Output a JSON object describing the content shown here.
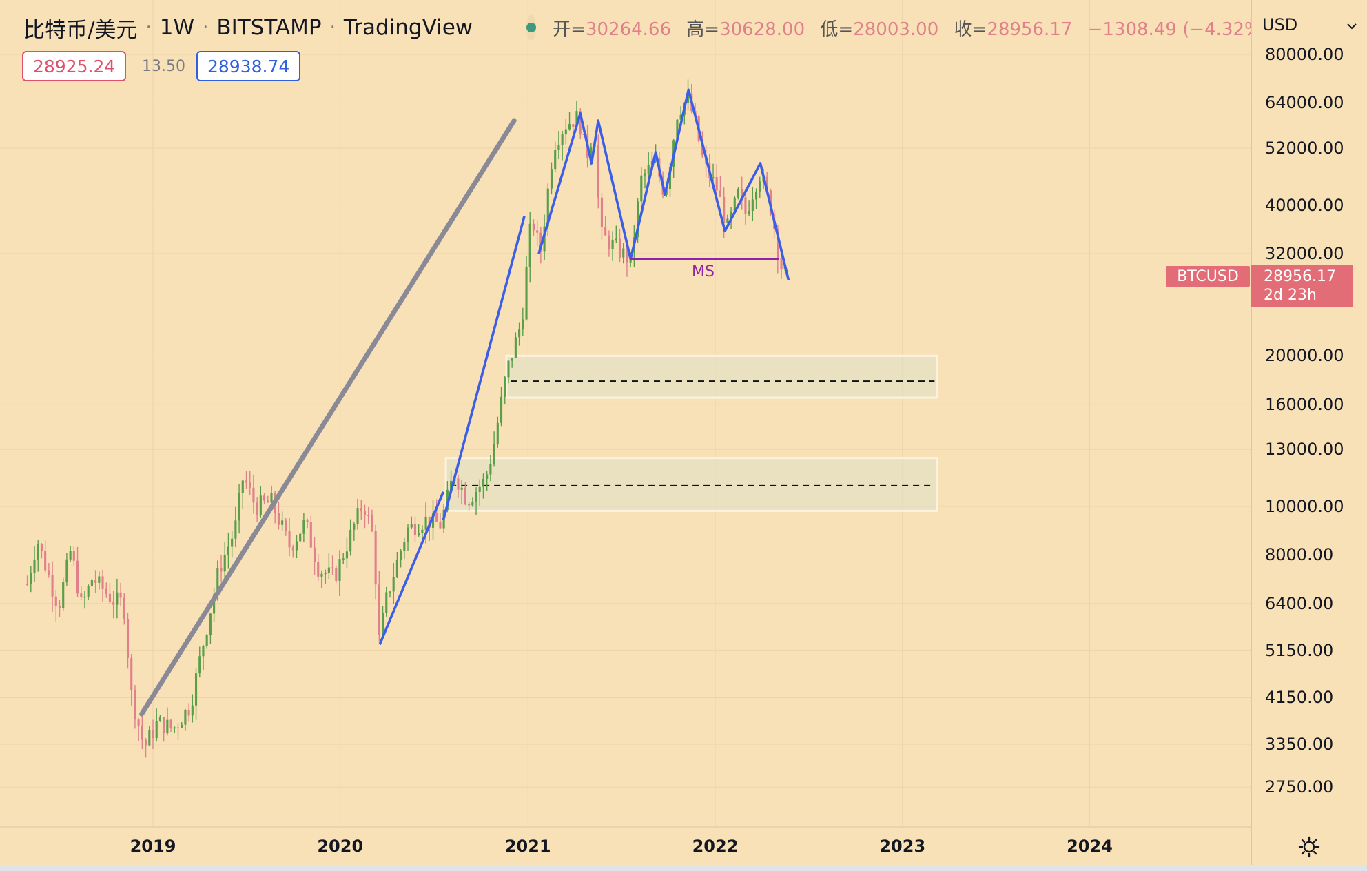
{
  "header": {
    "symbol": "比特币/美元",
    "interval": "1W",
    "exchange": "BITSTAMP",
    "provider": "TradingView",
    "sep": "·",
    "ohlc": {
      "open_label": "开=",
      "open": "30264.66",
      "high_label": "高=",
      "high": "30628.00",
      "low_label": "低=",
      "low": "28003.00",
      "close_label": "收=",
      "close": "28956.17",
      "change": "−1308.49 (−4.32%)"
    }
  },
  "trade": {
    "sell": "28925.24",
    "spread": "13.50",
    "buy": "28938.74"
  },
  "axis": {
    "currency": "USD",
    "y_ticks": [
      "80000.00",
      "64000.00",
      "52000.00",
      "40000.00",
      "32000.00",
      "20000.00",
      "16000.00",
      "13000.00",
      "10000.00",
      "8000.00",
      "6400.00",
      "5150.00",
      "4150.00",
      "3350.00",
      "2750.00"
    ],
    "x_ticks": [
      "2019",
      "2020",
      "2021",
      "2022",
      "2023",
      "2024"
    ]
  },
  "price_label": {
    "symbol": "BTCUSD",
    "value": "28956.17",
    "countdown": "2d 23h"
  },
  "annotations": {
    "ms": "MS"
  },
  "icons": [
    "flag-icon",
    "live-status-icon",
    "chevron-down-icon",
    "settings-icon"
  ],
  "colors": {
    "background": "#f9e1b7",
    "candle_up": "#5a9e4a",
    "candle_down": "#e0808a",
    "trend_line_blue": "#3a5ee8",
    "trend_line_gray": "#8a8a96",
    "ms_line": "#8e24aa",
    "price_tag": "#e26d77"
  },
  "chart_data": {
    "type": "candlestick",
    "symbol": "BTCUSD",
    "interval": "1W",
    "scale": "log",
    "ylim": [
      2400,
      95000
    ],
    "xlim": [
      "2018-04-30",
      "2025-01-01"
    ],
    "x_ticks": [
      "2019",
      "2020",
      "2021",
      "2022",
      "2023",
      "2024"
    ],
    "y_ticks": [
      80000,
      64000,
      52000,
      40000,
      32000,
      20000,
      16000,
      13000,
      10000,
      8000,
      6400,
      5150,
      4150,
      3350,
      2750
    ],
    "anchors": [
      [
        "2018-05-01",
        7000
      ],
      [
        "2018-05-20",
        8600
      ],
      [
        "2018-07-01",
        6300
      ],
      [
        "2018-07-25",
        8200
      ],
      [
        "2018-08-15",
        6300
      ],
      [
        "2018-09-05",
        7200
      ],
      [
        "2018-10-15",
        6500
      ],
      [
        "2018-11-05",
        6400
      ],
      [
        "2018-11-20",
        4200
      ],
      [
        "2018-12-15",
        3300
      ],
      [
        "2019-01-10",
        3700
      ],
      [
        "2019-02-10",
        3600
      ],
      [
        "2019-03-15",
        4000
      ],
      [
        "2019-04-05",
        5100
      ],
      [
        "2019-05-10",
        7500
      ],
      [
        "2019-06-10",
        9000
      ],
      [
        "2019-06-26",
        11500
      ],
      [
        "2019-07-20",
        10000
      ],
      [
        "2019-08-20",
        10200
      ],
      [
        "2019-09-25",
        8300
      ],
      [
        "2019-10-25",
        9300
      ],
      [
        "2019-11-20",
        7500
      ],
      [
        "2019-12-20",
        7200
      ],
      [
        "2020-01-20",
        8700
      ],
      [
        "2020-02-15",
        10200
      ],
      [
        "2020-03-08",
        8500
      ],
      [
        "2020-03-14",
        5200
      ],
      [
        "2020-04-01",
        6600
      ],
      [
        "2020-05-10",
        9000
      ],
      [
        "2020-06-15",
        9400
      ],
      [
        "2020-07-15",
        9200
      ],
      [
        "2020-08-10",
        11700
      ],
      [
        "2020-09-05",
        10300
      ],
      [
        "2020-10-10",
        11300
      ],
      [
        "2020-10-25",
        13000
      ],
      [
        "2020-11-20",
        18500
      ],
      [
        "2020-12-20",
        23500
      ],
      [
        "2021-01-08",
        38000
      ],
      [
        "2021-01-25",
        32000
      ],
      [
        "2021-02-20",
        53000
      ],
      [
        "2021-03-15",
        58000
      ],
      [
        "2021-04-10",
        60000
      ],
      [
        "2021-04-25",
        50000
      ],
      [
        "2021-05-10",
        57000
      ],
      [
        "2021-05-22",
        35000
      ],
      [
        "2021-06-20",
        33000
      ],
      [
        "2021-07-20",
        31000
      ],
      [
        "2021-08-10",
        45000
      ],
      [
        "2021-09-05",
        49000
      ],
      [
        "2021-09-25",
        42000
      ],
      [
        "2021-10-20",
        62000
      ],
      [
        "2021-11-10",
        65000
      ],
      [
        "2021-11-25",
        57000
      ],
      [
        "2021-12-10",
        48000
      ],
      [
        "2022-01-05",
        43000
      ],
      [
        "2022-01-25",
        36000
      ],
      [
        "2022-02-15",
        42000
      ],
      [
        "2022-03-01",
        38500
      ],
      [
        "2022-03-28",
        46500
      ],
      [
        "2022-04-20",
        39500
      ],
      [
        "2022-05-08",
        30500
      ],
      [
        "2022-05-20",
        28956
      ]
    ],
    "levels": {
      "support_zone_high": {
        "from": "2020-11-20",
        "to": "2023-03-10",
        "low": 16500,
        "high": 20000,
        "dashed_at": 17800
      },
      "support_zone_low": {
        "from": "2020-07-25",
        "to": "2023-03-10",
        "low": 9800,
        "high": 12500,
        "dashed_at": 11000
      },
      "ms_line": {
        "from": "2021-07-20",
        "to": "2022-05-05",
        "price": 31200
      }
    },
    "trend_lines": {
      "gray": [
        [
          "2018-12-10",
          3850
        ],
        [
          "2020-12-05",
          59000
        ]
      ],
      "blue": [
        [
          [
            "2020-03-18",
            5300
          ],
          [
            "2020-07-20",
            10700
          ]
        ],
        [
          [
            "2020-07-20",
            9400
          ],
          [
            "2020-12-25",
            38000
          ]
        ],
        [
          [
            "2021-01-22",
            32000
          ],
          [
            "2021-04-13",
            61000
          ],
          [
            "2021-05-05",
            48500
          ],
          [
            "2021-05-18",
            59000
          ],
          [
            "2021-07-20",
            31200
          ],
          [
            "2021-09-07",
            51000
          ],
          [
            "2021-09-25",
            42000
          ],
          [
            "2021-11-10",
            68000
          ],
          [
            "2022-01-20",
            35500
          ],
          [
            "2022-03-30",
            48500
          ],
          [
            "2022-05-24",
            28300
          ]
        ]
      ]
    },
    "last_price": 28956.17,
    "countdown": "2d 23h"
  }
}
